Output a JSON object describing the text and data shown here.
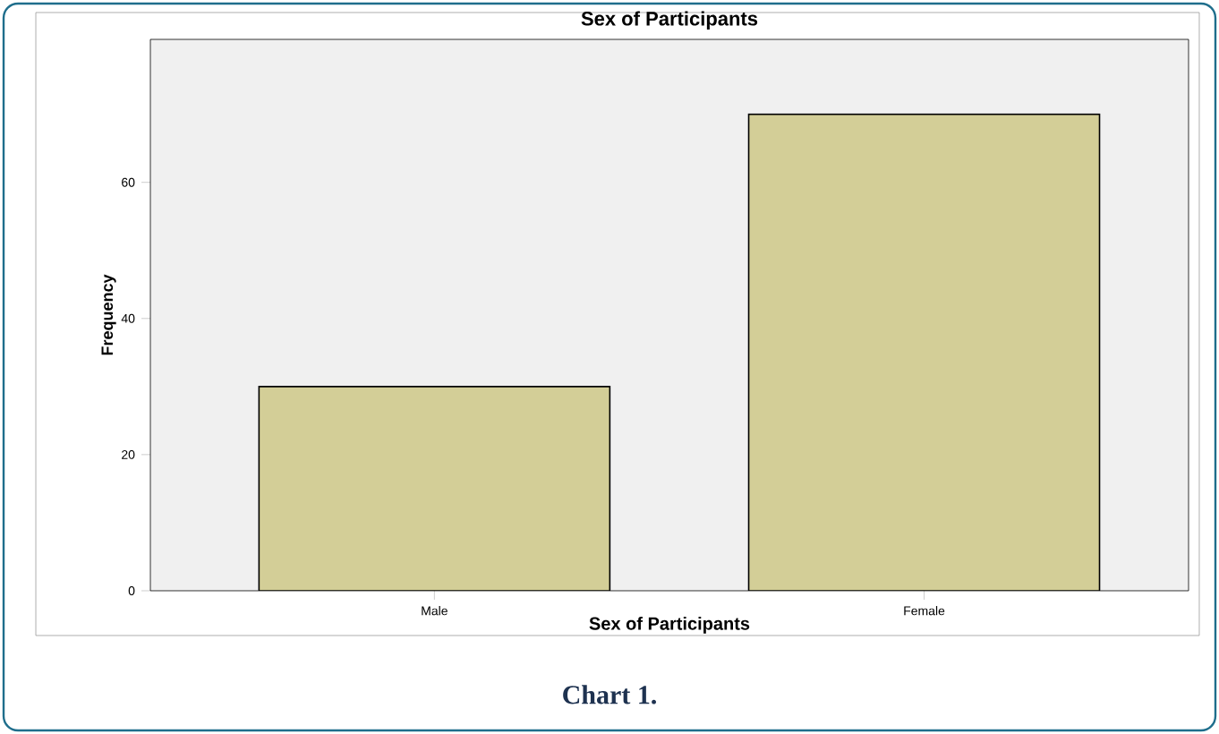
{
  "chart_data": {
    "type": "bar",
    "title": "Sex of Participants",
    "xlabel": "Sex of Participants",
    "ylabel": "Frequency",
    "categories": [
      "Male",
      "Female"
    ],
    "values": [
      30,
      70
    ],
    "color": "#d3ce97",
    "ylim": [
      0,
      81
    ],
    "yticks": [
      0,
      20,
      40,
      60
    ],
    "grid": false,
    "annotations": [
      "Chart 1."
    ]
  }
}
